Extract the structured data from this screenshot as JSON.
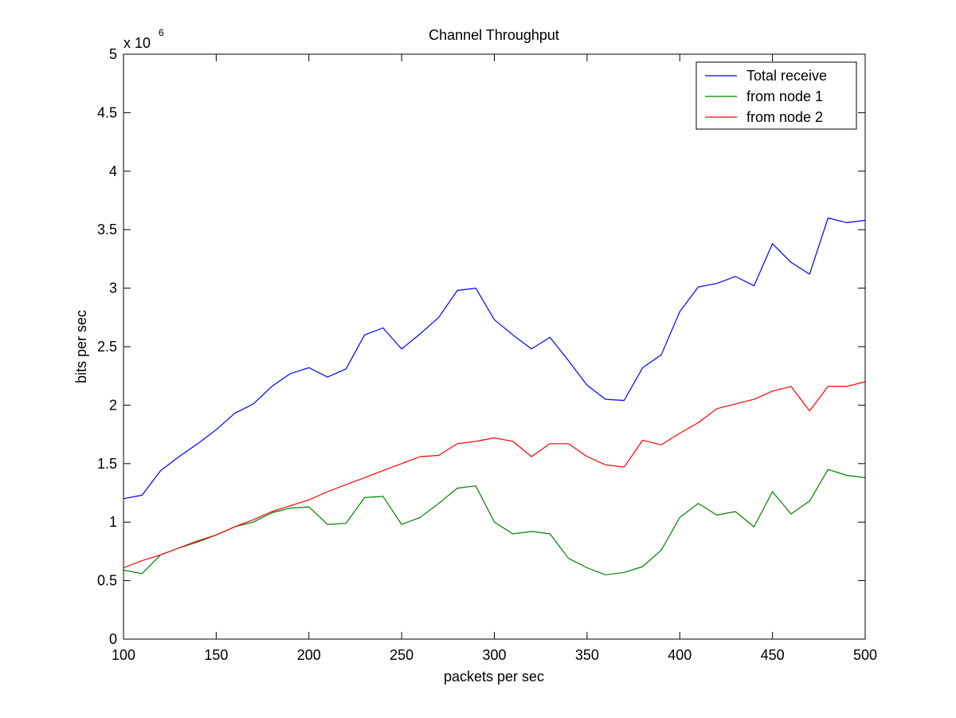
{
  "chart_data": {
    "type": "line",
    "title": "Channel Throughput",
    "xlabel": "packets per sec",
    "ylabel": "bits per sec",
    "y_exponent_label": {
      "base": "x 10",
      "exponent": "6"
    },
    "xlim": [
      100,
      500
    ],
    "ylim": [
      0,
      5
    ],
    "x_ticks": [
      100,
      150,
      200,
      250,
      300,
      350,
      400,
      450,
      500
    ],
    "x_tick_labels": [
      "100",
      "150",
      "200",
      "250",
      "300",
      "350",
      "400",
      "450",
      "500"
    ],
    "y_ticks": [
      0,
      0.5,
      1,
      1.5,
      2,
      2.5,
      3,
      3.5,
      4,
      4.5,
      5
    ],
    "y_tick_labels": [
      "0",
      "0.5",
      "1",
      "1.5",
      "2",
      "2.5",
      "3",
      "3.5",
      "4",
      "4.5",
      "5"
    ],
    "grid": false,
    "legend_position": "top-right",
    "x": [
      100,
      110,
      120,
      130,
      140,
      150,
      160,
      170,
      180,
      190,
      200,
      210,
      220,
      230,
      240,
      250,
      260,
      270,
      280,
      290,
      300,
      310,
      320,
      330,
      340,
      350,
      360,
      370,
      380,
      390,
      400,
      410,
      420,
      430,
      440,
      450,
      460,
      470,
      480,
      490,
      500
    ],
    "series": [
      {
        "name": "Total receive",
        "color": "#0000ff",
        "values": [
          1.2,
          1.23,
          1.44,
          1.56,
          1.67,
          1.79,
          1.93,
          2.01,
          2.16,
          2.27,
          2.32,
          2.24,
          2.31,
          2.6,
          2.66,
          2.48,
          2.61,
          2.75,
          2.98,
          3.0,
          2.73,
          2.6,
          2.48,
          2.58,
          2.38,
          2.17,
          2.05,
          2.04,
          2.32,
          2.43,
          2.8,
          3.01,
          3.04,
          3.1,
          3.02,
          3.38,
          3.22,
          3.12,
          3.6,
          3.56,
          3.58
        ]
      },
      {
        "name": "from node 1",
        "color": "#008000",
        "values": [
          0.59,
          0.56,
          0.72,
          0.78,
          0.83,
          0.89,
          0.96,
          1.0,
          1.08,
          1.12,
          1.13,
          0.98,
          0.99,
          1.21,
          1.22,
          0.98,
          1.04,
          1.16,
          1.29,
          1.31,
          1.0,
          0.9,
          0.92,
          0.9,
          0.69,
          0.61,
          0.55,
          0.57,
          0.62,
          0.76,
          1.04,
          1.16,
          1.06,
          1.09,
          0.96,
          1.26,
          1.07,
          1.18,
          1.45,
          1.4,
          1.38
        ]
      },
      {
        "name": "from node 2",
        "color": "#ff0000",
        "values": [
          0.61,
          0.67,
          0.72,
          0.78,
          0.84,
          0.89,
          0.96,
          1.02,
          1.09,
          1.14,
          1.19,
          1.26,
          1.32,
          1.38,
          1.44,
          1.5,
          1.56,
          1.57,
          1.67,
          1.69,
          1.72,
          1.69,
          1.56,
          1.67,
          1.67,
          1.56,
          1.49,
          1.47,
          1.7,
          1.66,
          1.76,
          1.85,
          1.97,
          2.01,
          2.05,
          2.12,
          2.16,
          1.95,
          2.16,
          2.16,
          2.2
        ]
      }
    ]
  }
}
